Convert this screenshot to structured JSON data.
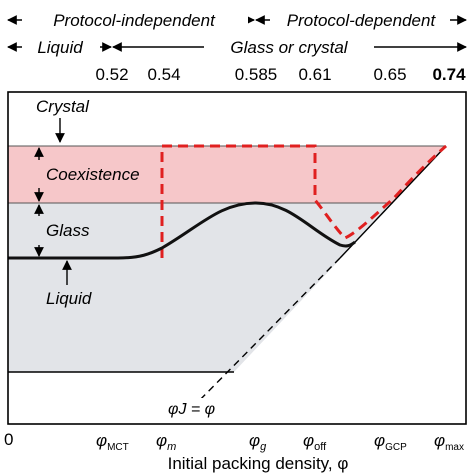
{
  "header": {
    "protocol_independent": "Protocol-independent",
    "protocol_dependent": "Protocol-dependent",
    "liquid": "Liquid",
    "glass_or_crystal": "Glass or crystal"
  },
  "top_ticks": [
    "0.52",
    "0.54",
    "0.585",
    "0.61",
    "0.65",
    "0.74"
  ],
  "regions": {
    "crystal": "Crystal",
    "coexistence": "Coexistence",
    "glass": "Glass",
    "liquid": "Liquid"
  },
  "line_label": "φJ = φ",
  "bottom_ticks": {
    "zero": "0",
    "mct": {
      "main": "φ",
      "sub": "MCT"
    },
    "m": {
      "main": "φ",
      "sub": "m"
    },
    "g": {
      "main": "φ",
      "sub": "g"
    },
    "off": {
      "main": "φ",
      "sub": "off"
    },
    "gcp": {
      "main": "φ",
      "sub": "GCP"
    },
    "max": {
      "main": "φ",
      "sub": "max"
    }
  },
  "xlabel": "Initial packing density, φ",
  "colors": {
    "coexistence_fill": "#f6c7c9",
    "glass_fill": "#e2e4e8",
    "dashed_red": "#e02020",
    "curve": "#111111"
  }
}
